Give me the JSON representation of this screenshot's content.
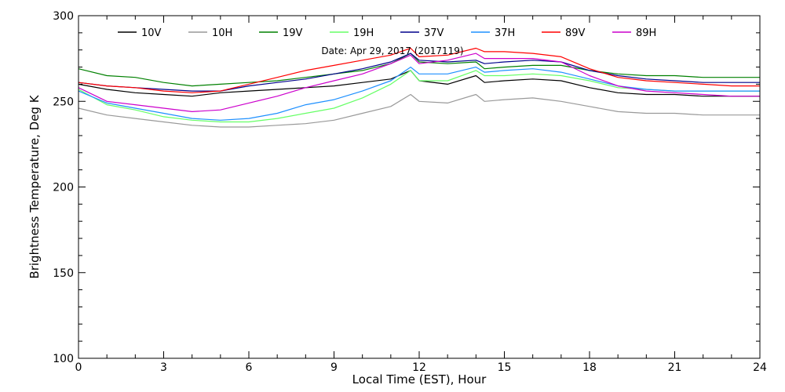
{
  "chart_data": {
    "type": "line",
    "title": "",
    "annotation": "Date: Apr 29, 2017 (2017119)",
    "xlabel": "Local Time (EST), Hour",
    "ylabel": "Brightness Temperature, Deg K",
    "xlim": [
      0,
      24
    ],
    "ylim": [
      100,
      300
    ],
    "xticks": [
      0,
      3,
      6,
      9,
      12,
      15,
      18,
      21,
      24
    ],
    "yticks": [
      100,
      150,
      200,
      250,
      300
    ],
    "grid": false,
    "legend_position": "top",
    "series": [
      {
        "name": "10V",
        "color": "#000000",
        "x": [
          0,
          1,
          2,
          3,
          4,
          5,
          6,
          7,
          8,
          9,
          10,
          11,
          11.7,
          12,
          13,
          14,
          14.3,
          15,
          16,
          17,
          18,
          19,
          20,
          21,
          22,
          23,
          24
        ],
        "y": [
          260,
          257,
          255,
          254,
          253,
          255,
          256,
          257,
          258,
          259,
          261,
          263,
          268,
          262,
          260,
          265,
          261,
          262,
          263,
          262,
          258,
          255,
          254,
          254,
          253,
          253,
          253
        ]
      },
      {
        "name": "10H",
        "color": "#999999",
        "x": [
          0,
          1,
          2,
          3,
          4,
          5,
          6,
          7,
          8,
          9,
          10,
          11,
          11.7,
          12,
          13,
          14,
          14.3,
          15,
          16,
          17,
          18,
          19,
          20,
          21,
          22,
          23,
          24
        ],
        "y": [
          246,
          242,
          240,
          238,
          236,
          235,
          235,
          236,
          237,
          239,
          243,
          247,
          254,
          250,
          249,
          254,
          250,
          251,
          252,
          250,
          247,
          244,
          243,
          243,
          242,
          242,
          242
        ]
      },
      {
        "name": "19V",
        "color": "#008000",
        "x": [
          0,
          1,
          2,
          3,
          4,
          5,
          6,
          7,
          8,
          9,
          10,
          11,
          11.7,
          12,
          13,
          14,
          14.3,
          15,
          16,
          17,
          18,
          19,
          20,
          21,
          22,
          23,
          24
        ],
        "y": [
          269,
          265,
          264,
          261,
          259,
          260,
          261,
          262,
          264,
          266,
          268,
          272,
          278,
          273,
          272,
          273,
          269,
          270,
          271,
          271,
          268,
          266,
          265,
          265,
          264,
          264,
          264
        ]
      },
      {
        "name": "19H",
        "color": "#66ff66",
        "x": [
          0,
          1,
          2,
          3,
          4,
          5,
          6,
          7,
          8,
          9,
          10,
          11,
          11.7,
          12,
          13,
          14,
          14.3,
          15,
          16,
          17,
          18,
          19,
          20,
          21,
          22,
          23,
          24
        ],
        "y": [
          257,
          248,
          245,
          241,
          239,
          238,
          238,
          240,
          243,
          246,
          252,
          260,
          268,
          262,
          262,
          268,
          265,
          265,
          266,
          265,
          262,
          258,
          257,
          256,
          256,
          256,
          256
        ]
      },
      {
        "name": "37V",
        "color": "#00008b",
        "x": [
          0,
          1,
          2,
          3,
          4,
          5,
          6,
          7,
          8,
          9,
          10,
          11,
          11.7,
          12,
          13,
          14,
          14.3,
          15,
          16,
          17,
          18,
          19,
          20,
          21,
          22,
          23,
          24
        ],
        "y": [
          261,
          259,
          258,
          257,
          256,
          256,
          259,
          261,
          263,
          266,
          269,
          273,
          278,
          274,
          273,
          274,
          272,
          273,
          274,
          273,
          268,
          265,
          263,
          262,
          261,
          261,
          261
        ]
      },
      {
        "name": "37H",
        "color": "#1e90ff",
        "x": [
          0,
          1,
          2,
          3,
          4,
          5,
          6,
          7,
          8,
          9,
          10,
          11,
          11.7,
          12,
          13,
          14,
          14.3,
          15,
          16,
          17,
          18,
          19,
          20,
          21,
          22,
          23,
          24
        ],
        "y": [
          256,
          249,
          246,
          243,
          240,
          239,
          240,
          243,
          248,
          251,
          256,
          262,
          270,
          266,
          266,
          270,
          267,
          268,
          269,
          267,
          263,
          259,
          257,
          256,
          256,
          256,
          256
        ]
      },
      {
        "name": "89V",
        "color": "#ff0000",
        "x": [
          0,
          1,
          2,
          3,
          4,
          5,
          6,
          7,
          8,
          9,
          10,
          11,
          11.7,
          12,
          13,
          14,
          14.3,
          15,
          16,
          17,
          18,
          19,
          20,
          21,
          22,
          23,
          24
        ],
        "y": [
          261,
          259,
          258,
          256,
          255,
          256,
          260,
          264,
          268,
          271,
          274,
          277,
          281,
          276,
          277,
          281,
          279,
          279,
          278,
          276,
          269,
          264,
          262,
          261,
          260,
          259,
          259
        ]
      },
      {
        "name": "89H",
        "color": "#cc00cc",
        "x": [
          0,
          1,
          2,
          3,
          4,
          5,
          6,
          7,
          8,
          9,
          10,
          11,
          11.7,
          12,
          13,
          14,
          14.3,
          15,
          16,
          17,
          18,
          19,
          20,
          21,
          22,
          23,
          24
        ],
        "y": [
          258,
          250,
          248,
          246,
          244,
          245,
          249,
          253,
          258,
          262,
          266,
          272,
          277,
          272,
          274,
          278,
          275,
          275,
          275,
          273,
          265,
          259,
          256,
          255,
          254,
          253,
          253
        ]
      }
    ]
  }
}
